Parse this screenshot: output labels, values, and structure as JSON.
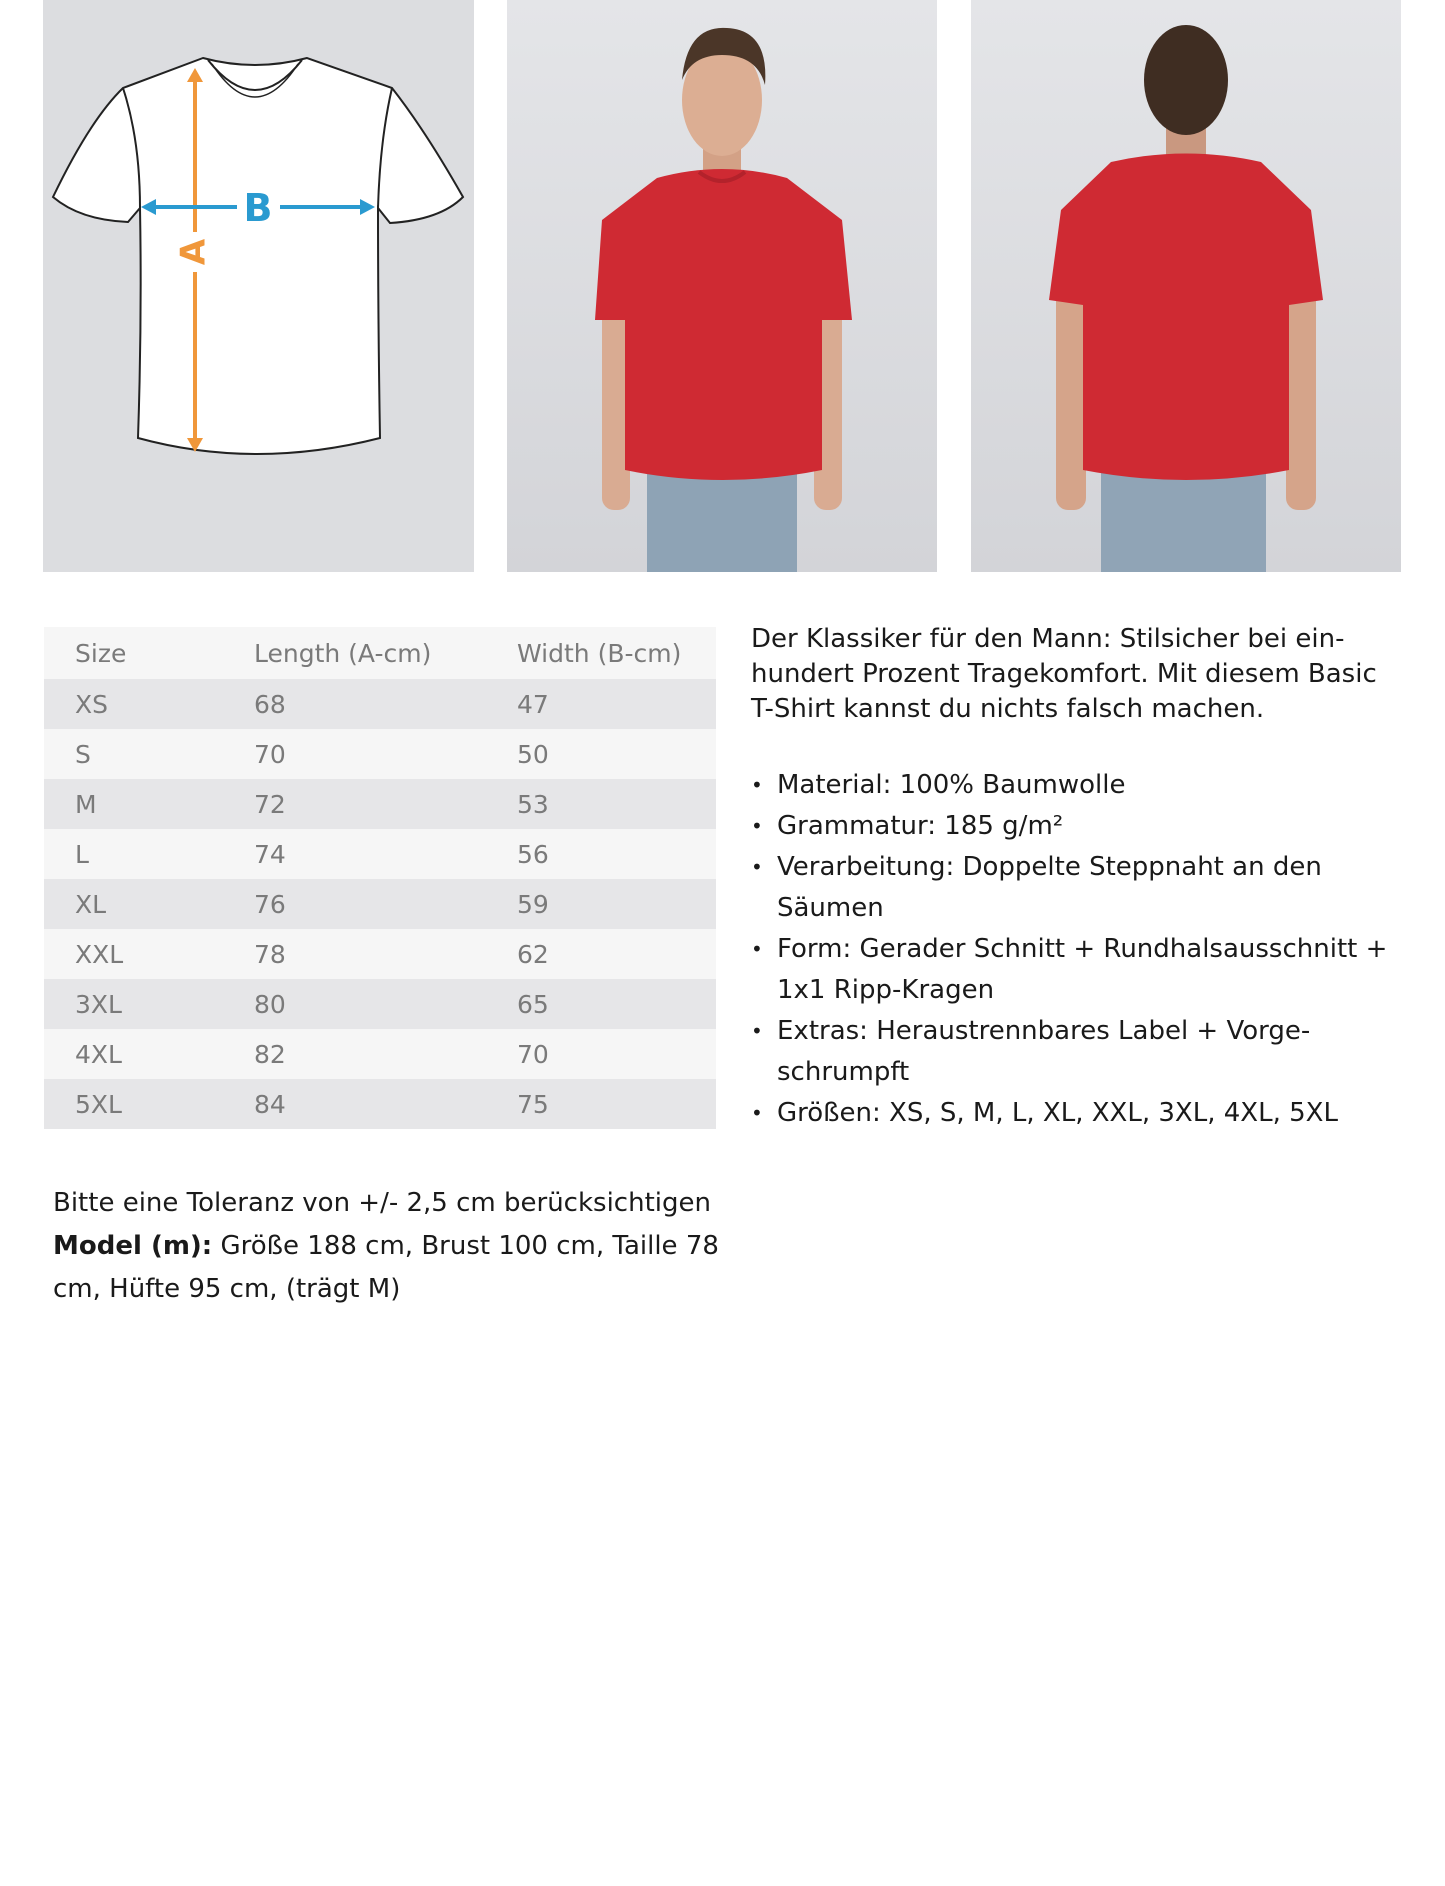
{
  "diagram": {
    "label_a": "A",
    "label_b": "B",
    "color_a": "#f0973a",
    "color_b": "#2a9ad0"
  },
  "photos": {
    "shirt_color": "#cf2a33",
    "jeans_color": "#8ea3b5",
    "background": "#dcdde0"
  },
  "size_table": {
    "headers": [
      "Size",
      "Length (A-cm)",
      "Width (B-cm)"
    ],
    "rows": [
      [
        "XS",
        "68",
        "47"
      ],
      [
        "S",
        "70",
        "50"
      ],
      [
        "M",
        "72",
        "53"
      ],
      [
        "L",
        "74",
        "56"
      ],
      [
        "XL",
        "76",
        "59"
      ],
      [
        "XXL",
        "78",
        "62"
      ],
      [
        "3XL",
        "80",
        "65"
      ],
      [
        "4XL",
        "82",
        "70"
      ],
      [
        "5XL",
        "84",
        "75"
      ]
    ]
  },
  "description": "Der Klassiker für den Mann: Stilsicher bei ein-hundert Prozent Tragekomfort. Mit diesem Basic T-Shirt kannst du nichts falsch machen.",
  "features": [
    "Material: 100% Baumwolle",
    "Grammatur: 185 g/m²",
    "Verarbeitung: Doppelte Steppnaht an den Säumen",
    "Form: Gerader Schnitt + Rundhalsausschnitt + 1x1 Ripp-Kragen",
    "Extras: Heraustrennbares Label + Vorge-schrumpft",
    "Größen: XS, S, M, L, XL, XXL, 3XL, 4XL, 5XL"
  ],
  "notes": {
    "tolerance": "Bitte eine Toleranz von +/- 2,5 cm berücksichtigen",
    "model_label": "Model (m):",
    "model_text": " Größe 188 cm, Brust 100 cm, Taille 78 cm, Hüfte 95 cm, (trägt M)"
  }
}
